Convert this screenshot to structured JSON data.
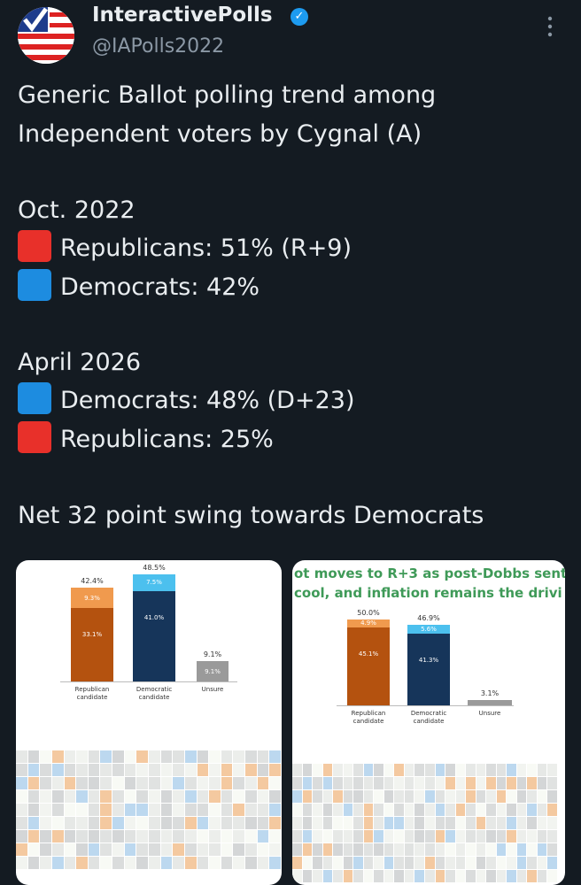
{
  "header": {
    "name": "InteractivePolls",
    "handle": "@IAPolls2022"
  },
  "tweet": {
    "lines": [
      {
        "text": "Generic Ballot polling trend among Independent voters by Cygnal (A)"
      },
      {
        "text": "Oct. 2022"
      },
      {
        "text": "Republicans: 51% (R+9)",
        "square": "#e8302a"
      },
      {
        "text": "Democrats: 42%",
        "square": "#1d8ce0"
      },
      {
        "text": "April 2026"
      },
      {
        "text": "Democrats: 48% (D+23)",
        "square": "#1d8ce0"
      },
      {
        "text": "Republicans: 25%",
        "square": "#e8302a"
      },
      {
        "text": "Net 32 point swing towards Democrats"
      }
    ]
  },
  "media": [
    {
      "chart_data": {
        "type": "bar",
        "categories": [
          "Republican candidate",
          "Democratic candidate",
          "Unsure"
        ],
        "series": [
          {
            "colors": [
              "#b4520f",
              "#16355a",
              "#9a9a9a"
            ],
            "values": [
              33.1,
              41.0,
              9.1
            ],
            "value_labels": [
              "33.1%",
              "41.0%",
              "9.1%"
            ]
          },
          {
            "colors": [
              "#f09a4e",
              "#4cc0ee",
              null
            ],
            "values": [
              9.3,
              7.5,
              null
            ],
            "value_labels": [
              "9.3%",
              "7.5%",
              null
            ]
          }
        ],
        "totals": {
          "values": [
            42.4,
            48.5,
            9.1
          ],
          "value_labels": [
            "42.4%",
            "48.5%",
            "9.1%"
          ]
        }
      }
    },
    {
      "chart_data": {
        "type": "bar",
        "title_lines": [
          "ot moves to R+3 as post-Dobbs sent",
          "cool, and inflation remains the drivi"
        ],
        "categories": [
          "Republican candidate",
          "Democratic candidate",
          "Unsure"
        ],
        "series": [
          {
            "colors": [
              "#b4520f",
              "#16355a",
              "#9a9a9a"
            ],
            "values": [
              45.1,
              41.3,
              3.1
            ],
            "value_labels": [
              "45.1%",
              "41.3%",
              null
            ]
          },
          {
            "colors": [
              "#f09a4e",
              "#4cc0ee",
              null
            ],
            "values": [
              4.9,
              5.6,
              null
            ],
            "value_labels": [
              "4.9%",
              "5.6%",
              null
            ]
          }
        ],
        "totals": {
          "values": [
            50.0,
            46.9,
            3.1
          ],
          "value_labels": [
            "50.0%",
            "46.9%",
            "3.1%"
          ]
        }
      }
    }
  ]
}
